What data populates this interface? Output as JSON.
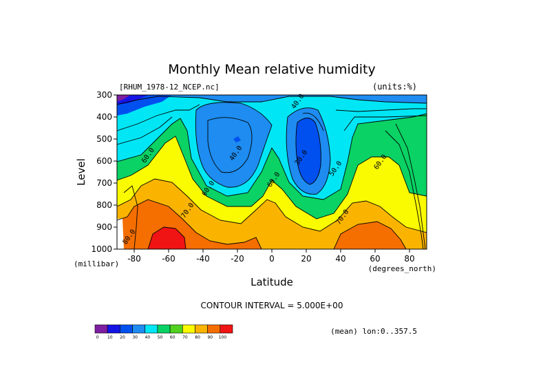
{
  "chart_data": {
    "type": "contour",
    "title": "Monthly Mean relative humidity",
    "file_label": "[RHUM_1978-12_NCEP.nc]",
    "units_label": "(units:%)",
    "xlabel": "Latitude",
    "x_units": "(degrees_north)",
    "ylabel": "Level",
    "y_units": "(millibar)",
    "xlim": [
      -90,
      90
    ],
    "ylim": [
      1000,
      300
    ],
    "x_ticks": [
      -80,
      -60,
      -40,
      -20,
      0,
      20,
      40,
      60,
      80
    ],
    "y_ticks": [
      300,
      400,
      500,
      600,
      700,
      800,
      900,
      1000
    ],
    "contour_interval_text": "CONTOUR INTERVAL = 5.000E+00",
    "mean_text": "(mean) lon:0..357.5",
    "contour_labels": [
      {
        "text": "40.0",
        "lat": 16,
        "lev": 335
      },
      {
        "text": "40.0",
        "lat": -20,
        "lev": 570
      },
      {
        "text": "30.0",
        "lat": 18,
        "lev": 590
      },
      {
        "text": "50.0",
        "lat": 38,
        "lev": 640
      },
      {
        "text": "60.0",
        "lat": -71,
        "lev": 580
      },
      {
        "text": "60.0",
        "lat": 2,
        "lev": 690
      },
      {
        "text": "60.0",
        "lat": 64,
        "lev": 610
      },
      {
        "text": "60.0",
        "lat": -36,
        "lev": 730
      },
      {
        "text": "70.0",
        "lat": -48,
        "lev": 830
      },
      {
        "text": "70.0",
        "lat": 42,
        "lev": 860
      },
      {
        "text": "80.0",
        "lat": -82,
        "lev": 950
      }
    ],
    "colorbar": {
      "levels": [
        0,
        10,
        20,
        30,
        40,
        50,
        60,
        70,
        80,
        90,
        100
      ],
      "colors": [
        "#7d1fa0",
        "#1414e6",
        "#0050f0",
        "#1e8cf0",
        "#00e6f5",
        "#0ad264",
        "#50d21e",
        "#fafa00",
        "#fab400",
        "#f56e00",
        "#f01414"
      ]
    }
  }
}
